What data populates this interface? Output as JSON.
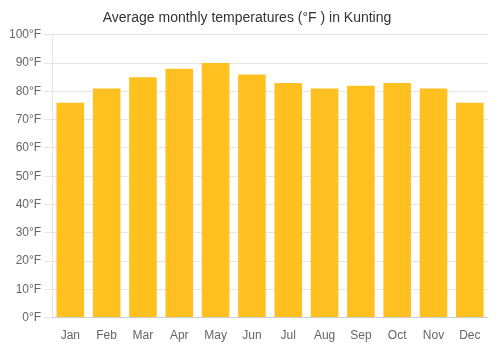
{
  "chart_data": {
    "type": "bar",
    "title": "Average monthly temperatures (°F ) in Kunting",
    "categories": [
      "Jan",
      "Feb",
      "Mar",
      "Apr",
      "May",
      "Jun",
      "Jul",
      "Aug",
      "Sep",
      "Oct",
      "Nov",
      "Dec"
    ],
    "values": [
      76,
      81,
      85,
      88,
      90,
      86,
      83,
      81,
      82,
      83,
      81,
      76
    ],
    "color": "#FFC020",
    "ylim": [
      0,
      100
    ],
    "yticks": [
      {
        "value": 0,
        "label": "0°F"
      },
      {
        "value": 10,
        "label": "10°F"
      },
      {
        "value": 20,
        "label": "20°F"
      },
      {
        "value": 30,
        "label": "30°F"
      },
      {
        "value": 40,
        "label": "40°F"
      },
      {
        "value": 50,
        "label": "50°F"
      },
      {
        "value": 60,
        "label": "60°F"
      },
      {
        "value": 70,
        "label": "70°F"
      },
      {
        "value": 80,
        "label": "80°F"
      },
      {
        "value": 90,
        "label": "90°F"
      },
      {
        "value": 100,
        "label": "100°F"
      }
    ],
    "grid": true
  }
}
